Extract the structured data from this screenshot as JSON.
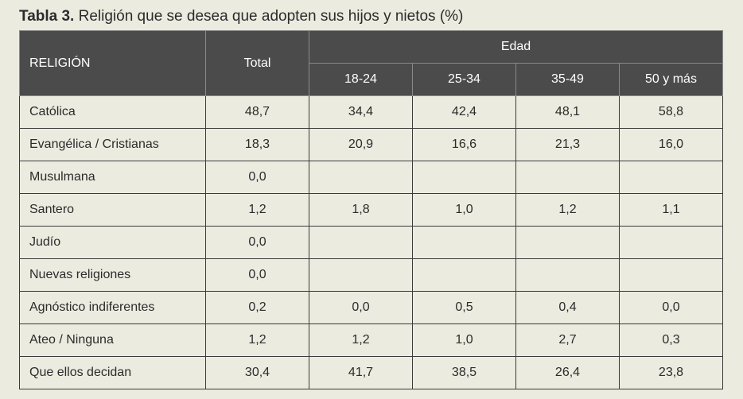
{
  "caption": {
    "label": "Tabla 3.",
    "text": " Religión que se desea que adopten sus hijos y nietos (%)"
  },
  "header": {
    "religion": "RELIGIÓN",
    "total": "Total",
    "edad": "Edad",
    "ages": [
      "18-24",
      "25-34",
      "35-49",
      "50 y más"
    ]
  },
  "rows": [
    {
      "label": "Católica",
      "total": "48,7",
      "a": "34,4",
      "b": "42,4",
      "c": "48,1",
      "d": "58,8"
    },
    {
      "label": "Evangélica / Cristianas",
      "total": "18,3",
      "a": "20,9",
      "b": "16,6",
      "c": "21,3",
      "d": "16,0"
    },
    {
      "label": "Musulmana",
      "total": "0,0",
      "a": "",
      "b": "",
      "c": "",
      "d": ""
    },
    {
      "label": "Santero",
      "total": "1,2",
      "a": "1,8",
      "b": "1,0",
      "c": "1,2",
      "d": "1,1"
    },
    {
      "label": "Judío",
      "total": "0,0",
      "a": "",
      "b": "",
      "c": "",
      "d": ""
    },
    {
      "label": "Nuevas religiones",
      "total": "0,0",
      "a": "",
      "b": "",
      "c": "",
      "d": ""
    },
    {
      "label": "Agnóstico indiferentes",
      "total": "0,2",
      "a": "0,0",
      "b": "0,5",
      "c": "0,4",
      "d": "0,0"
    },
    {
      "label": "Ateo / Ninguna",
      "total": "1,2",
      "a": "1,2",
      "b": "1,0",
      "c": "2,7",
      "d": "0,3"
    },
    {
      "label": "Que ellos decidan",
      "total": "30,4",
      "a": "41,7",
      "b": "38,5",
      "c": "26,4",
      "d": "23,8"
    }
  ]
}
